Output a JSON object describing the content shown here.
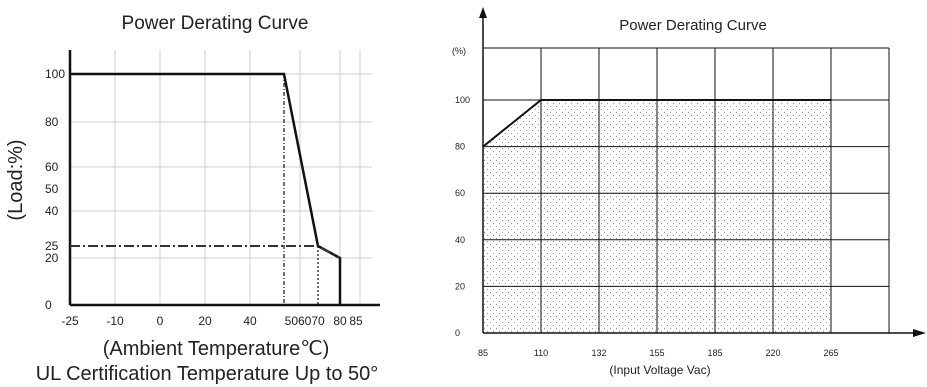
{
  "chart_data": [
    {
      "type": "line",
      "title": "Power Derating Curve",
      "xlabel": "(Ambient Temperature℃)",
      "ylabel": "(Load:%)",
      "caption": "UL Certification Temperature Up to 50°",
      "x_ticks": [
        "-25",
        "-10",
        "0",
        "20",
        "40",
        "5060",
        "70",
        "80",
        "85"
      ],
      "x_tick_values": [
        -25,
        -10,
        0,
        20,
        40,
        55,
        70,
        80,
        85
      ],
      "y_ticks": [
        "100",
        "80",
        "60",
        "50",
        "40",
        "25",
        "20",
        "0"
      ],
      "y_tick_values": [
        100,
        80,
        60,
        50,
        40,
        25,
        20,
        0
      ],
      "series": [
        {
          "values_x": [
            -25,
            50,
            70,
            80,
            80
          ],
          "values_y": [
            100,
            100,
            25,
            20,
            0
          ]
        },
        {
          "values_x": [
            -25,
            50,
            70,
            80
          ],
          "values_y": [
            25,
            25,
            25,
            20
          ]
        }
      ],
      "xlim": [
        -25,
        85
      ],
      "ylim": [
        0,
        100
      ],
      "grid": true
    },
    {
      "type": "area",
      "title": "Power Derating Curve",
      "xlabel": "(Input Voltage Vac)",
      "ylabel": "(%)",
      "x_ticks": [
        "85",
        "110",
        "132",
        "155",
        "185",
        "220",
        "265"
      ],
      "y_ticks": [
        "100",
        "80",
        "60",
        "40",
        "20",
        "0"
      ],
      "x": [
        85,
        110,
        265
      ],
      "y": [
        80,
        100,
        100
      ],
      "ylim": [
        0,
        100
      ],
      "grid": true
    }
  ]
}
